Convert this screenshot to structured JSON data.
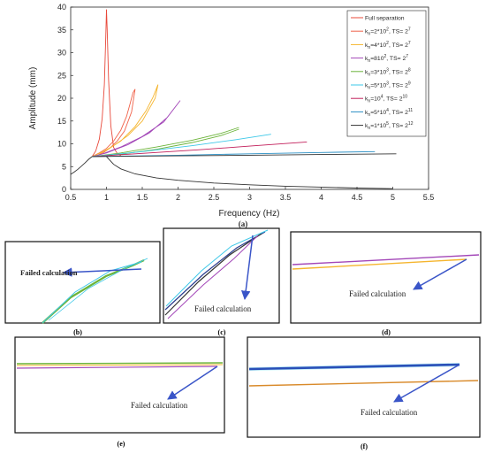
{
  "chart_data": [
    {
      "type": "line",
      "panel_label": "(a)",
      "xlabel": "Frequency (Hz)",
      "ylabel": "Amplitude (mm)",
      "xlim": [
        0.5,
        5.5
      ],
      "ylim": [
        0,
        40
      ],
      "xticks": [
        "0.5",
        "1",
        "1.5",
        "2",
        "2.5",
        "3",
        "3.5",
        "4",
        "4.5",
        "5",
        "5.5"
      ],
      "yticks": [
        "0",
        "5",
        "10",
        "15",
        "20",
        "25",
        "30",
        "35",
        "40"
      ],
      "grid": false,
      "legend_position": "top-right",
      "legend": [
        {
          "label": "Full separation",
          "color": "#e8483a"
        },
        {
          "label": "k",
          "sub": "n",
          "rest": "=2*10",
          "sup": "2",
          "tail": ", TS= 2",
          "tsup": "7",
          "color": "#f0624a"
        },
        {
          "label": "k",
          "sub": "n",
          "rest": "=4*10",
          "sup": "2",
          "tail": ", TS= 2",
          "tsup": "7",
          "color": "#f5b52e"
        },
        {
          "label": "k",
          "sub": "n",
          "rest": "=810",
          "sup": "2",
          "tail": ", TS= 2",
          "tsup": "7",
          "color": "#a347b8"
        },
        {
          "label": "k",
          "sub": "n",
          "rest": "=3*10",
          "sup": "3",
          "tail": ", TS= 2",
          "tsup": "8",
          "color": "#6cb43a"
        },
        {
          "label": "k",
          "sub": "n",
          "rest": "=5*10",
          "sup": "3",
          "tail": ", TS= 2",
          "tsup": "9",
          "color": "#3ec8e8"
        },
        {
          "label": "k",
          "sub": "n",
          "rest": "=10",
          "sup": "4",
          "tail": ", TS= 2",
          "tsup": "10",
          "color": "#c21f5b"
        },
        {
          "label": "k",
          "sub": "n",
          "rest": "=5*10",
          "sup": "4",
          "tail": ", TS= 2",
          "tsup": "11",
          "color": "#2a8fc4"
        },
        {
          "label": "k",
          "sub": "n",
          "rest": "=1*10",
          "sup": "5",
          "tail": ", TS= 2",
          "tsup": "12",
          "color": "#333333"
        }
      ],
      "series": [
        {
          "color": "#e8483a",
          "x": [
            0.8,
            0.85,
            0.9,
            0.94,
            0.97,
            0.99,
            1.0,
            1.01,
            1.03,
            1.06,
            1.1,
            1.15,
            1.2
          ],
          "y": [
            7.2,
            8.4,
            11.0,
            15.5,
            23.0,
            33.5,
            39.5,
            35.0,
            24.0,
            14.0,
            9.2,
            7.9,
            7.4
          ]
        },
        {
          "color": "#333333",
          "x": [
            1.0,
            1.1,
            1.2,
            1.4,
            1.7,
            2.0,
            2.5,
            3.0,
            3.5,
            4.0,
            4.5,
            5.0
          ],
          "y": [
            7.2,
            5.5,
            4.5,
            3.4,
            2.5,
            2.0,
            1.4,
            1.0,
            0.7,
            0.5,
            0.3,
            0.15
          ]
        },
        {
          "color": "#333333",
          "x": [
            0.5,
            0.55,
            0.6,
            0.65,
            0.7,
            0.75,
            0.8
          ],
          "y": [
            3.3,
            3.8,
            4.4,
            5.1,
            5.8,
            6.6,
            7.2
          ]
        },
        {
          "color": "#f0624a",
          "x": [
            0.8,
            0.9,
            1.0,
            1.1,
            1.2,
            1.28,
            1.33,
            1.37,
            1.4,
            1.35,
            1.25,
            1.15,
            1.05,
            0.95,
            0.85
          ],
          "y": [
            7.2,
            8.0,
            9.0,
            10.6,
            13.0,
            16.0,
            18.8,
            21.2,
            22.0,
            17.0,
            12.8,
            10.6,
            9.1,
            8.0,
            7.3
          ]
        },
        {
          "color": "#f5b52e",
          "x": [
            0.8,
            1.0,
            1.2,
            1.4,
            1.55,
            1.65,
            1.72,
            1.68,
            1.5,
            1.3,
            1.1,
            0.9
          ],
          "y": [
            7.2,
            8.6,
            10.6,
            13.8,
            17.2,
            20.2,
            23.0,
            20.0,
            15.0,
            11.8,
            9.6,
            7.8
          ]
        },
        {
          "color": "#a347b8",
          "x": [
            0.8,
            1.0,
            1.3,
            1.6,
            1.85,
            2.03,
            1.8,
            1.5,
            1.2,
            0.95
          ],
          "y": [
            7.2,
            8.0,
            9.8,
            12.4,
            15.8,
            19.5,
            14.8,
            11.6,
            9.3,
            7.8
          ]
        },
        {
          "color": "#6cb43a",
          "x": [
            0.8,
            1.2,
            1.7,
            2.2,
            2.6,
            2.85
          ],
          "y": [
            7.2,
            8.0,
            9.3,
            10.8,
            12.3,
            13.6
          ]
        },
        {
          "color": "#6cb43a",
          "x": [
            0.8,
            1.2,
            1.7,
            2.2,
            2.6,
            2.85
          ],
          "y": [
            7.2,
            7.7,
            8.8,
            10.3,
            11.8,
            13.2
          ]
        },
        {
          "color": "#3ec8e8",
          "x": [
            0.8,
            1.5,
            2.2,
            2.8,
            3.3
          ],
          "y": [
            7.2,
            8.3,
            9.6,
            10.9,
            12.1
          ]
        },
        {
          "color": "#c21f5b",
          "x": [
            0.8,
            1.5,
            2.3,
            3.0,
            3.8
          ],
          "y": [
            7.2,
            7.9,
            8.7,
            9.5,
            10.4
          ]
        },
        {
          "color": "#2a8fc4",
          "x": [
            0.8,
            2.0,
            3.0,
            4.0,
            4.75
          ],
          "y": [
            7.2,
            7.5,
            7.8,
            8.1,
            8.3
          ]
        },
        {
          "color": "#333333",
          "x": [
            0.8,
            2.0,
            3.0,
            4.0,
            5.05
          ],
          "y": [
            7.2,
            7.35,
            7.5,
            7.65,
            7.8
          ]
        }
      ]
    }
  ],
  "insets": [
    {
      "id": "b",
      "label": "(b)",
      "annotation": "Failed calculation"
    },
    {
      "id": "c",
      "label": "(c)",
      "annotation": "Failed calculation"
    },
    {
      "id": "d",
      "label": "(d)",
      "annotation": "Failed calculation"
    },
    {
      "id": "e",
      "label": "(e)",
      "annotation": "Failed calculation"
    },
    {
      "id": "f",
      "label": "(f)",
      "annotation": "Failed calculation"
    }
  ]
}
